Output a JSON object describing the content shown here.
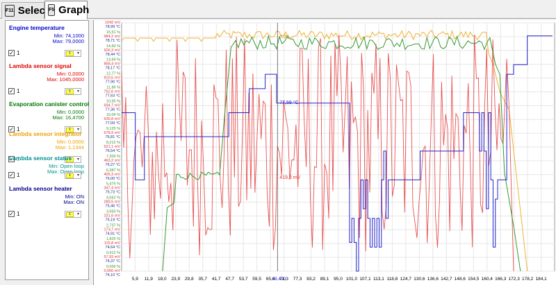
{
  "tabs": [
    {
      "key": "F11",
      "label": "Select"
    },
    {
      "key": "F5",
      "label": "Graph"
    }
  ],
  "signals": [
    {
      "name": "Engine temperature",
      "color": "#0000cc",
      "min": "Min: 74,1000",
      "max": "Max: 79,0000",
      "channel": "1",
      "scale": "1"
    },
    {
      "name": "Lambda sensor signal",
      "color": "#e00000",
      "min": "Min: 0,0000",
      "max": "Max: 1045,0000",
      "channel": "1",
      "scale": "1"
    },
    {
      "name": "Evaporation canister control",
      "color": "#007700",
      "min": "Min: 0,0000",
      "max": "Max: 16,4700",
      "channel": "1",
      "scale": "1"
    },
    {
      "name": "Lambda sensor integrator",
      "color": "#f0a000",
      "min": "Min: 0,0000",
      "max": "Max: 1,1344",
      "channel": "1",
      "scale": "1"
    },
    {
      "name": "Lambda sensor status",
      "color": "#009090",
      "min": "Min: Open loop",
      "max": "Max: Open loop",
      "channel": "1",
      "scale": "1"
    },
    {
      "name": "Lambda sensor heater",
      "color": "#000088",
      "min": "Min: ON",
      "max": "Max: ON",
      "channel": "1",
      "scale": "1"
    }
  ],
  "chart_data": {
    "type": "line",
    "x_ticks": [
      "5,9",
      "11,9",
      "18,0",
      "23,9",
      "29,8",
      "35,7",
      "41,7",
      "47,7",
      "53,7",
      "59,5",
      "65,4",
      "71,3",
      "77,3",
      "83,2",
      "89,1",
      "95,0",
      "101,0",
      "107,1",
      "113,1",
      "118,8",
      "124,7",
      "130,6",
      "136,6",
      "142,7",
      "148,6",
      "154,5",
      "160,4",
      "166,3",
      "172,3",
      "178,2",
      "184,1"
    ],
    "y_labels": [
      {
        "green": "",
        "red": "1042 mV",
        "blue": "78,99 °C"
      },
      {
        "green": "15,51 %",
        "red": "984,2 mV",
        "blue": "78,71 °C"
      },
      {
        "green": "14,60 %",
        "red": "926,3 mV",
        "blue": "78,44 °C"
      },
      {
        "green": "13,69 %",
        "red": "868,4 mV",
        "blue": "78,17 °C"
      },
      {
        "green": "12,77 %",
        "red": "810,5 mV",
        "blue": "77,90 °C"
      },
      {
        "green": "11,86 %",
        "red": "752,6 mV",
        "blue": "77,63 °C"
      },
      {
        "green": "10,95 %",
        "red": "694,7 mV",
        "blue": "77,36 °C"
      },
      {
        "green": "10,04 %",
        "red": "636,8 mV",
        "blue": "77,09 °C"
      },
      {
        "green": "9,125 %",
        "red": "578,9 mV",
        "blue": "76,81 °C"
      },
      {
        "green": "8,212 %",
        "red": "521,1 mV",
        "blue": "76,54 °C"
      },
      {
        "green": "7,300 %",
        "red": "463,2 mV",
        "blue": "76,27 °C"
      },
      {
        "green": "6,387 %",
        "red": "405,3 mV",
        "blue": "76,00 °C"
      },
      {
        "green": "5,475 %",
        "red": "347,4 mV",
        "blue": "75,73 °C"
      },
      {
        "green": "4,562 %",
        "red": "289,5 mV",
        "blue": "75,46 °C"
      },
      {
        "green": "3,650 %",
        "red": "231,6 mV",
        "blue": "75,19 °C"
      },
      {
        "green": "2,737 %",
        "red": "173,7 mV",
        "blue": "74,91 °C"
      },
      {
        "green": "1,825 %",
        "red": "115,8 mV",
        "blue": "74,64 °C"
      },
      {
        "green": "0,912 %",
        "red": "57,93 mV",
        "blue": "74,37 °C"
      },
      {
        "green": "0,000 %",
        "red": "0,000 mV",
        "blue": "74,10 °C"
      }
    ],
    "cursor": {
      "x_label": "68,400",
      "blue_label": "77,59 °C",
      "red_label": "419,0 mV",
      "yellow_label": "0,98"
    },
    "series": [
      {
        "name": "Engine temperature",
        "color": "#1a1acc",
        "x": [
          0,
          4,
          6,
          10,
          28,
          47,
          48,
          56,
          63,
          64,
          68,
          83,
          84,
          95,
          100,
          101,
          102,
          103,
          104,
          105,
          106,
          107,
          108,
          109,
          110,
          111,
          112,
          113,
          114,
          115,
          116,
          117,
          118,
          119,
          120,
          121,
          122,
          124,
          130,
          131,
          140,
          141,
          150,
          156,
          157,
          158,
          159,
          160,
          161,
          162,
          163,
          164,
          165,
          166,
          167,
          168,
          169,
          170,
          172,
          176,
          178,
          184,
          188,
          189
        ],
        "y": [
          77.4,
          77.4,
          76.0,
          76.9,
          76.9,
          77.4,
          77.4,
          77.9,
          78.2,
          78.2,
          77.6,
          77.6,
          77.6,
          77.6,
          74.7,
          75.2,
          74.7,
          74.1,
          75.2,
          76.0,
          75.4,
          76.0,
          75.2,
          74.6,
          75.2,
          74.6,
          75.2,
          74.6,
          76.0,
          76.6,
          75.2,
          76.0,
          76.0,
          76.0,
          76.0,
          76.0,
          76.0,
          76.0,
          76.0,
          76.6,
          76.6,
          76.6,
          77.4,
          77.4,
          76.6,
          77.4,
          76.6,
          75.4,
          77.4,
          76.0,
          74.6,
          75.6,
          76.0,
          76.0,
          76.0,
          76.0,
          78.2,
          78.2,
          78.4,
          78.4,
          79.0,
          79.0,
          79.0,
          79.0
        ]
      },
      {
        "name": "Lambda sensor signal",
        "color": "#e03030",
        "x": [],
        "y": [],
        "note": "oscillating"
      },
      {
        "name": "Evaporation canister control",
        "color": "#339933"
      },
      {
        "name": "Lambda sensor integrator",
        "color": "#f0b030"
      }
    ]
  }
}
